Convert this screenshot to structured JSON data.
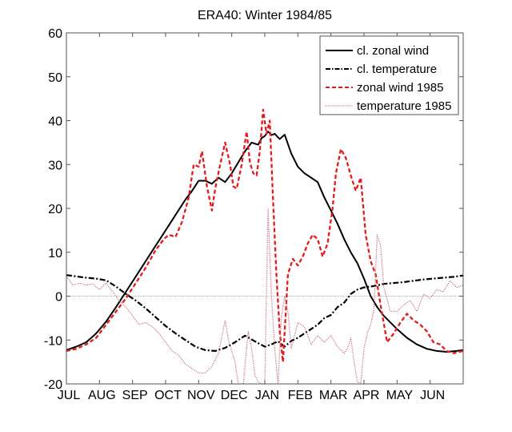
{
  "chart_data": {
    "type": "line",
    "title": "ERA40: Winter 1984/85",
    "xlabel": "",
    "ylabel": "",
    "xlim": [
      0,
      12
    ],
    "ylim": [
      -20,
      60
    ],
    "x_unit": "months since 1 JUL",
    "x_tick_labels": [
      "JUL",
      "AUG",
      "SEP",
      "OCT",
      "NOV",
      "DEC",
      "JAN",
      "FEB",
      "MAR",
      "APR",
      "MAY",
      "JUN"
    ],
    "y_ticks": [
      -20,
      -10,
      0,
      10,
      20,
      30,
      40,
      50,
      60
    ],
    "zero_line": true,
    "grid": false,
    "legend_position": "top-right",
    "series": [
      {
        "name": "cl. zonal wind",
        "style": "solid",
        "color": "#000000",
        "x": [
          0,
          0.3,
          0.6,
          0.9,
          1.2,
          1.5,
          1.8,
          2.1,
          2.4,
          2.7,
          3.0,
          3.3,
          3.6,
          3.8,
          4.0,
          4.2,
          4.4,
          4.6,
          4.8,
          5.0,
          5.2,
          5.4,
          5.6,
          5.8,
          5.9,
          6.0,
          6.1,
          6.2,
          6.3,
          6.45,
          6.6,
          6.8,
          7.0,
          7.2,
          7.4,
          7.6,
          7.8,
          8.0,
          8.2,
          8.4,
          8.6,
          8.8,
          9.0,
          9.2,
          9.4,
          9.6,
          9.8,
          10.0,
          10.3,
          10.6,
          10.9,
          11.2,
          11.5,
          11.8,
          12.0
        ],
        "y": [
          -12.3,
          -11.5,
          -10.5,
          -8.5,
          -5.8,
          -2.5,
          1.0,
          4.5,
          8.0,
          11.5,
          15.0,
          18.5,
          22.0,
          24.0,
          26.3,
          26.3,
          25.6,
          27.0,
          26.0,
          28.0,
          30.5,
          33.0,
          35.0,
          34.5,
          36.0,
          36.5,
          37.5,
          36.7,
          37.0,
          35.8,
          36.8,
          32.5,
          29.5,
          28.0,
          27.0,
          26.0,
          22.5,
          19.5,
          16.5,
          13.0,
          10.0,
          7.5,
          4.0,
          0.0,
          -2.5,
          -4.5,
          -6.0,
          -7.5,
          -9.5,
          -11.0,
          -12.0,
          -12.5,
          -12.7,
          -12.5,
          -12.3
        ]
      },
      {
        "name": "cl. temperature",
        "style": "dashdot",
        "color": "#000000",
        "x": [
          0,
          0.3,
          0.6,
          0.9,
          1.2,
          1.5,
          1.8,
          2.1,
          2.4,
          2.7,
          3.0,
          3.3,
          3.6,
          3.9,
          4.2,
          4.5,
          4.8,
          5.1,
          5.4,
          5.7,
          6.0,
          6.2,
          6.4,
          6.6,
          6.8,
          7.0,
          7.2,
          7.4,
          7.6,
          7.8,
          8.0,
          8.2,
          8.4,
          8.6,
          8.8,
          9.0,
          9.3,
          9.6,
          9.9,
          10.2,
          10.5,
          10.8,
          11.1,
          11.4,
          11.7,
          12.0
        ],
        "y": [
          4.8,
          4.5,
          4.2,
          4.0,
          3.6,
          2.2,
          0.5,
          -1.0,
          -2.8,
          -4.8,
          -6.8,
          -8.5,
          -10.0,
          -11.5,
          -12.3,
          -12.5,
          -11.8,
          -10.5,
          -9.0,
          -10.3,
          -11.5,
          -11.0,
          -10.3,
          -11.5,
          -10.2,
          -9.5,
          -8.5,
          -7.5,
          -6.5,
          -5.0,
          -4.3,
          -2.5,
          -1.5,
          0.5,
          1.5,
          2.0,
          2.3,
          2.8,
          3.0,
          3.2,
          3.5,
          3.8,
          4.0,
          4.2,
          4.4,
          4.7
        ]
      },
      {
        "name": "zonal wind 1985",
        "style": "dashed",
        "color": "#e41a1c",
        "x": [
          0,
          0.3,
          0.6,
          0.9,
          1.2,
          1.5,
          1.8,
          2.1,
          2.4,
          2.7,
          2.95,
          3.1,
          3.3,
          3.5,
          3.7,
          3.85,
          4.0,
          4.1,
          4.25,
          4.4,
          4.5,
          4.65,
          4.8,
          4.95,
          5.05,
          5.15,
          5.3,
          5.45,
          5.55,
          5.65,
          5.75,
          5.85,
          5.95,
          6.05,
          6.15,
          6.25,
          6.35,
          6.45,
          6.55,
          6.7,
          6.85,
          7.0,
          7.15,
          7.3,
          7.45,
          7.6,
          7.75,
          7.9,
          8.05,
          8.15,
          8.3,
          8.45,
          8.6,
          8.75,
          8.9,
          9.05,
          9.2,
          9.35,
          9.5,
          9.7,
          9.9,
          10.1,
          10.3,
          10.5,
          10.7,
          10.9,
          11.1,
          11.3,
          11.5,
          11.7,
          12.0
        ],
        "y": [
          -12.5,
          -12.0,
          -11.0,
          -9.5,
          -6.5,
          -3.5,
          -0.5,
          3.0,
          6.5,
          10.5,
          13.0,
          14.0,
          13.5,
          17.0,
          22.5,
          30.0,
          29.5,
          33.0,
          25.0,
          19.5,
          24.5,
          30.0,
          35.0,
          30.0,
          25.0,
          24.5,
          30.0,
          37.5,
          30.5,
          28.0,
          27.5,
          33.0,
          42.5,
          37.0,
          40.0,
          22.0,
          5.0,
          -8.0,
          -15.0,
          5.0,
          8.5,
          7.0,
          9.0,
          12.0,
          14.0,
          13.0,
          9.0,
          12.0,
          20.0,
          28.0,
          33.5,
          31.5,
          27.5,
          24.0,
          27.0,
          14.0,
          8.0,
          5.0,
          -2.0,
          -10.5,
          -8.5,
          -6.0,
          -4.0,
          -5.5,
          -6.5,
          -8.0,
          -10.5,
          -11.0,
          -12.5,
          -13.0,
          -12.5
        ]
      },
      {
        "name": "temperature 1985",
        "style": "dotted",
        "color": "#c06070",
        "x": [
          0,
          0.2,
          0.4,
          0.6,
          0.8,
          1.0,
          1.2,
          1.4,
          1.6,
          1.8,
          2.0,
          2.2,
          2.4,
          2.6,
          2.8,
          3.0,
          3.2,
          3.4,
          3.6,
          3.8,
          4.0,
          4.2,
          4.4,
          4.6,
          4.8,
          4.9,
          5.0,
          5.1,
          5.2,
          5.35,
          5.5,
          5.6,
          5.7,
          5.8,
          5.9,
          6.0,
          6.1,
          6.2,
          6.3,
          6.4,
          6.5,
          6.6,
          6.7,
          6.8,
          6.9,
          7.0,
          7.2,
          7.4,
          7.6,
          7.8,
          8.0,
          8.2,
          8.4,
          8.5,
          8.6,
          8.7,
          8.8,
          8.9,
          9.0,
          9.1,
          9.2,
          9.3,
          9.4,
          9.5,
          9.6,
          9.8,
          10.0,
          10.2,
          10.4,
          10.6,
          10.8,
          11.0,
          11.2,
          11.4,
          11.6,
          11.8,
          12.0
        ],
        "y": [
          4.5,
          2.5,
          3.0,
          2.5,
          2.8,
          1.5,
          3.0,
          1.0,
          -1.0,
          -2.5,
          -4.5,
          -6.5,
          -6.0,
          -7.0,
          -8.5,
          -10.5,
          -12.5,
          -13.5,
          -15.5,
          -16.5,
          -17.5,
          -17.5,
          -16.0,
          -13.0,
          -5.5,
          -10.0,
          -12.5,
          -15.0,
          -20.0,
          -20.0,
          -8.0,
          -12.0,
          -18.0,
          -19.5,
          -20.0,
          -20.0,
          20.0,
          0.0,
          -12.0,
          -20.0,
          -5.0,
          0.0,
          -3.5,
          -12.0,
          -9.0,
          -6.0,
          -7.0,
          -11.0,
          -9.0,
          -10.5,
          -9.0,
          -11.5,
          -13.0,
          -12.0,
          -9.5,
          -15.0,
          -19.5,
          -20.0,
          -12.0,
          -8.5,
          -6.5,
          -3.0,
          14.0,
          11.5,
          2.0,
          -3.5,
          -3.5,
          -2.0,
          -1.0,
          -3.5,
          0.5,
          -0.5,
          1.5,
          1.0,
          3.5,
          2.0,
          2.5
        ]
      }
    ]
  }
}
